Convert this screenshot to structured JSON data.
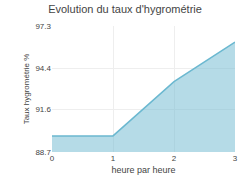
{
  "chart_data": {
    "type": "area",
    "title": "Evolution du taux d'hygrométrie",
    "xlabel": "heure par heure",
    "ylabel": "Taux hygrométrie %",
    "x": [
      0,
      1,
      2,
      3
    ],
    "values": [
      89.8,
      89.8,
      93.5,
      96.2
    ],
    "color": "#6bb8d0",
    "xlim": [
      0,
      3
    ],
    "xticks": [
      0,
      1,
      2,
      3
    ],
    "ylim": [
      88.7,
      97.3
    ],
    "yticks": [
      88.7,
      91.6,
      94.4,
      97.3
    ],
    "grid": true
  }
}
